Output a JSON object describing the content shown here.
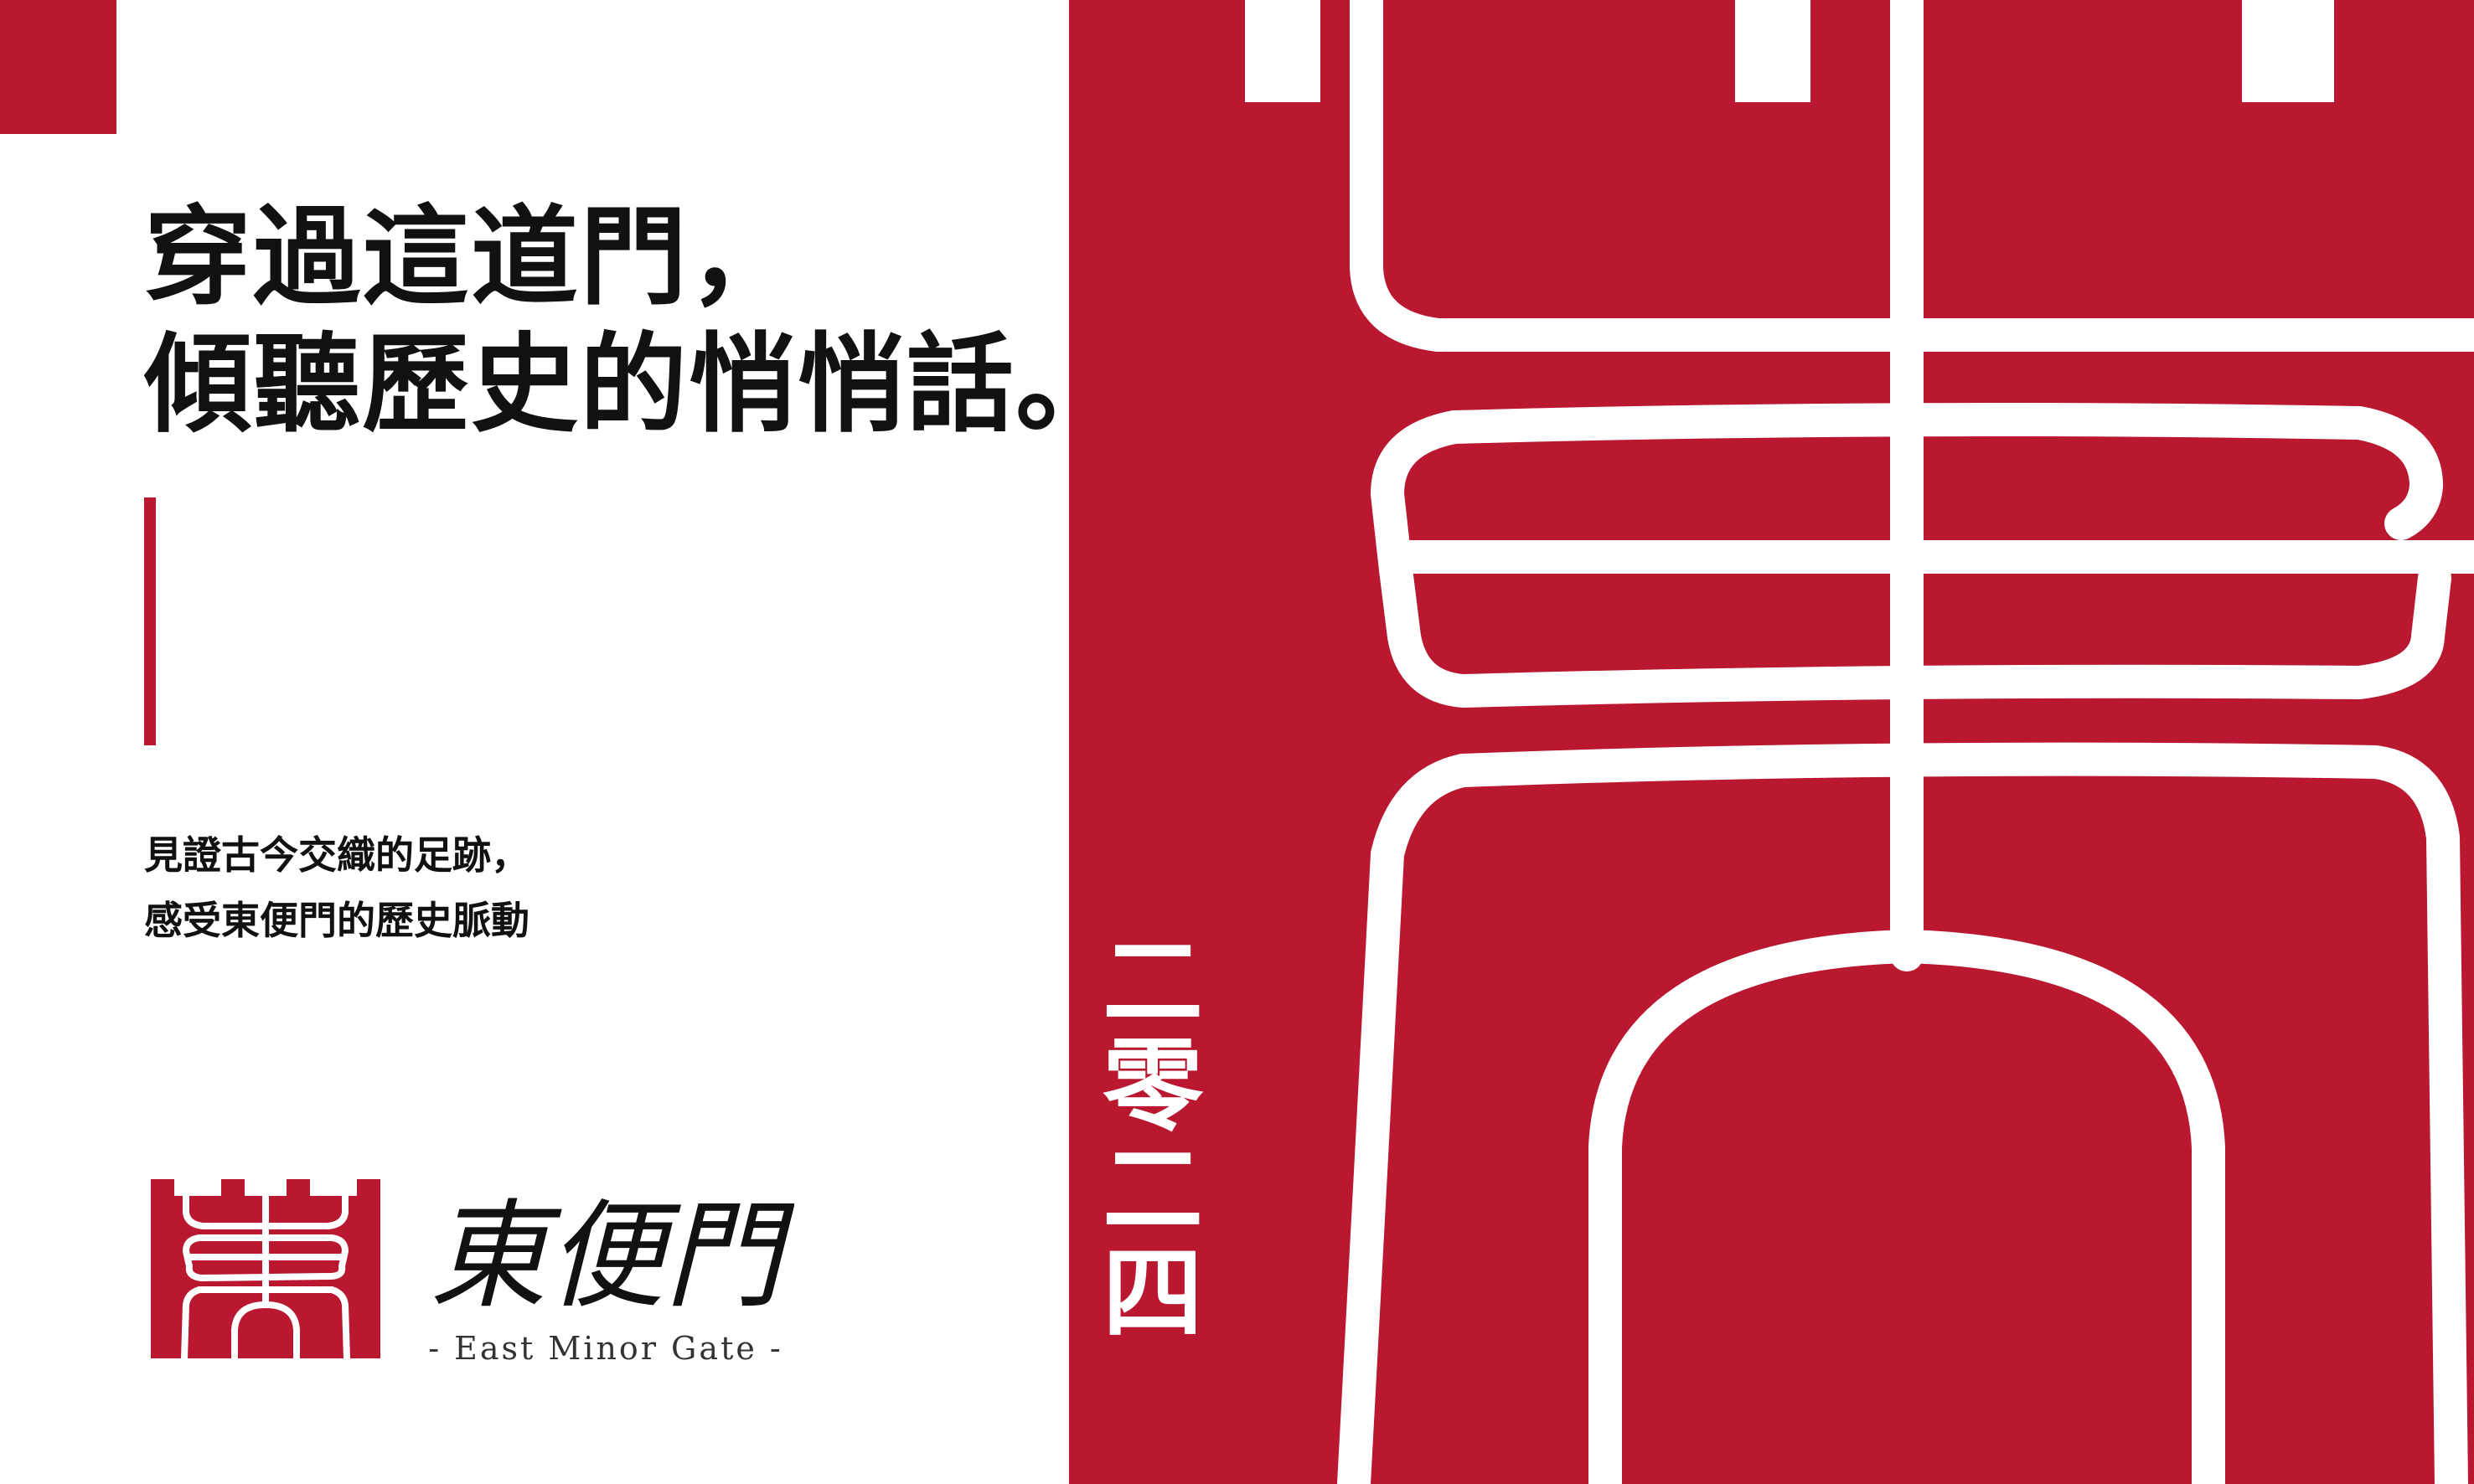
{
  "colors": {
    "brand_red": "#b91830",
    "text": "#111111",
    "background": "#ffffff"
  },
  "headline": {
    "line1": "穿過這道門，",
    "line2": "傾聽歷史的悄悄話。"
  },
  "subtext": {
    "line1": "見證古今交織的足跡，",
    "line2": "感受東便門的歷史脈動"
  },
  "logo": {
    "script_text": "東便門",
    "english_name": "- East Minor Gate -",
    "mark_icon": "gate-seal-icon"
  },
  "hero": {
    "icon": "gate-tower-seal-icon"
  },
  "year": {
    "chars": [
      "二",
      "零",
      "二",
      "四"
    ]
  }
}
